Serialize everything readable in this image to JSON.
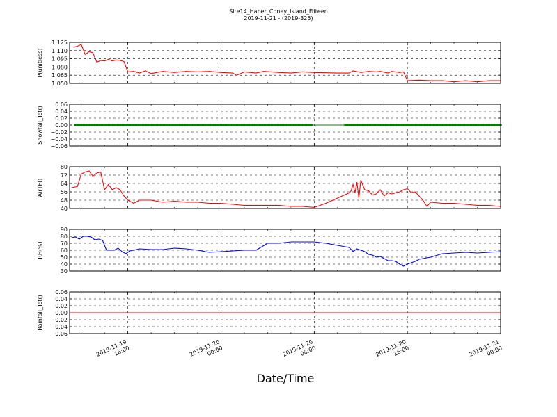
{
  "figure": {
    "title": "Site14_Haber_Coney_Island_Fifteen",
    "subtitle": "2019-11-21 - (2019-325)",
    "xlabel": "Date/Time"
  },
  "chart_data": [
    {
      "type": "line",
      "ylabel": "P(unitless)",
      "ylim": [
        1.05,
        1.125
      ],
      "yticks": [
        "1.050",
        "1.065",
        "1.080",
        "1.095",
        "1.110",
        "1.125"
      ],
      "grid": true,
      "series": [
        {
          "color": "#ff0000",
          "x": [
            "2019-11-19 11:20",
            "2019-11-19 11:40",
            "2019-11-19 12:00",
            "2019-11-19 12:20",
            "2019-11-19 12:40",
            "2019-11-19 13:00",
            "2019-11-19 13:20",
            "2019-11-19 13:40",
            "2019-11-19 14:00",
            "2019-11-19 14:20",
            "2019-11-19 14:40",
            "2019-11-19 15:00",
            "2019-11-19 15:20",
            "2019-11-19 15:40",
            "2019-11-19 16:00",
            "2019-11-19 16:30",
            "2019-11-19 17:00",
            "2019-11-19 17:30",
            "2019-11-19 18:00",
            "2019-11-19 19:00",
            "2019-11-19 20:00",
            "2019-11-19 21:00",
            "2019-11-19 22:00",
            "2019-11-19 23:00",
            "2019-11-20 00:00",
            "2019-11-20 01:00",
            "2019-11-20 01:20",
            "2019-11-20 02:00",
            "2019-11-20 03:00",
            "2019-11-20 03:40",
            "2019-11-20 05:00",
            "2019-11-20 06:00",
            "2019-11-20 07:00",
            "2019-11-20 08:00",
            "2019-11-20 10:00",
            "2019-11-20 11:00",
            "2019-11-20 11:20",
            "2019-11-20 12:00",
            "2019-11-20 12:40",
            "2019-11-20 13:20",
            "2019-11-20 13:40",
            "2019-11-20 14:20",
            "2019-11-20 14:40",
            "2019-11-20 15:20",
            "2019-11-20 15:40",
            "2019-11-20 16:00",
            "2019-11-20 17:00",
            "2019-11-20 18:00",
            "2019-11-20 19:00",
            "2019-11-20 20:00",
            "2019-11-20 21:00",
            "2019-11-20 22:00",
            "2019-11-20 23:00",
            "2019-11-21 00:00"
          ],
          "values": [
            1.116,
            1.118,
            1.121,
            1.103,
            1.108,
            1.106,
            1.089,
            1.092,
            1.091,
            1.094,
            1.091,
            1.093,
            1.092,
            1.09,
            1.071,
            1.072,
            1.069,
            1.073,
            1.068,
            1.072,
            1.07,
            1.072,
            1.071,
            1.072,
            1.07,
            1.069,
            1.065,
            1.071,
            1.069,
            1.072,
            1.07,
            1.069,
            1.071,
            1.07,
            1.069,
            1.069,
            1.073,
            1.07,
            1.072,
            1.071,
            1.072,
            1.069,
            1.072,
            1.07,
            1.071,
            1.055,
            1.056,
            1.055,
            1.055,
            1.053,
            1.055,
            1.053,
            1.055,
            1.055
          ]
        }
      ]
    },
    {
      "type": "scatter",
      "ylabel": "Snowfall_Tot()",
      "ylim": [
        -0.06,
        0.06
      ],
      "yticks": [
        "−0.06",
        "−0.04",
        "−0.02",
        "0.00",
        "0.02",
        "0.04",
        "0.06"
      ],
      "grid": true,
      "series": [
        {
          "color": "#008000",
          "line_value": 0.0,
          "segments": [
            [
              "2019-11-19 11:30",
              "2019-11-20 07:50"
            ],
            [
              "2019-11-20 10:40",
              "2019-11-21 00:00"
            ]
          ],
          "marker_interval_minutes": 8
        }
      ]
    },
    {
      "type": "line",
      "ylabel": "AirTF()",
      "ylim": [
        40,
        80
      ],
      "yticks": [
        "40",
        "48",
        "56",
        "64",
        "72",
        "80"
      ],
      "grid": true,
      "series": [
        {
          "color": "#ff0000",
          "x": [
            "2019-11-19 11:10",
            "2019-11-19 11:40",
            "2019-11-19 12:00",
            "2019-11-19 12:20",
            "2019-11-19 12:40",
            "2019-11-19 13:00",
            "2019-11-19 13:20",
            "2019-11-19 13:40",
            "2019-11-19 14:00",
            "2019-11-19 14:20",
            "2019-11-19 14:40",
            "2019-11-19 15:00",
            "2019-11-19 15:20",
            "2019-11-19 15:40",
            "2019-11-19 16:00",
            "2019-11-19 16:30",
            "2019-11-19 17:00",
            "2019-11-19 18:00",
            "2019-11-19 19:00",
            "2019-11-19 20:00",
            "2019-11-19 21:00",
            "2019-11-19 22:00",
            "2019-11-19 23:00",
            "2019-11-20 00:00",
            "2019-11-20 01:00",
            "2019-11-20 02:00",
            "2019-11-20 03:00",
            "2019-11-20 04:00",
            "2019-11-20 05:00",
            "2019-11-20 06:00",
            "2019-11-20 07:00",
            "2019-11-20 08:00",
            "2019-11-20 09:00",
            "2019-11-20 10:00",
            "2019-11-20 11:00",
            "2019-11-20 11:10",
            "2019-11-20 11:20",
            "2019-11-20 11:30",
            "2019-11-20 11:40",
            "2019-11-20 11:50",
            "2019-11-20 12:00",
            "2019-11-20 12:20",
            "2019-11-20 12:40",
            "2019-11-20 13:00",
            "2019-11-20 13:20",
            "2019-11-20 13:40",
            "2019-11-20 14:00",
            "2019-11-20 14:20",
            "2019-11-20 14:40",
            "2019-11-20 15:00",
            "2019-11-20 15:20",
            "2019-11-20 15:40",
            "2019-11-20 16:00",
            "2019-11-20 16:20",
            "2019-11-20 16:40",
            "2019-11-20 17:00",
            "2019-11-20 17:20",
            "2019-11-20 17:40",
            "2019-11-20 18:00",
            "2019-11-20 19:00",
            "2019-11-20 20:00",
            "2019-11-20 21:00",
            "2019-11-20 22:00",
            "2019-11-20 23:00",
            "2019-11-21 00:00"
          ],
          "values": [
            60,
            61,
            73,
            75,
            76,
            71,
            74,
            75,
            58,
            63,
            58,
            60,
            58,
            52,
            48,
            45,
            48,
            48,
            46,
            47,
            46,
            46,
            45,
            45,
            44,
            43,
            43,
            43,
            43,
            42,
            42,
            41,
            45,
            50,
            55,
            57,
            63,
            55,
            65,
            50,
            67,
            58,
            57,
            53,
            54,
            58,
            52,
            55,
            54,
            55,
            56,
            58,
            59,
            55,
            56,
            52,
            48,
            42,
            46,
            45,
            45,
            44,
            43,
            43,
            42
          ]
        }
      ]
    },
    {
      "type": "line",
      "ylabel": "RH(%)",
      "ylim": [
        30,
        90
      ],
      "yticks": [
        "30",
        "40",
        "50",
        "60",
        "70",
        "80",
        "90"
      ],
      "grid": true,
      "series": [
        {
          "color": "#0000ff",
          "x": [
            "2019-11-19 11:10",
            "2019-11-19 11:30",
            "2019-11-19 11:50",
            "2019-11-19 12:10",
            "2019-11-19 12:30",
            "2019-11-19 12:50",
            "2019-11-19 13:10",
            "2019-11-19 13:30",
            "2019-11-19 13:50",
            "2019-11-19 14:10",
            "2019-11-19 14:30",
            "2019-11-19 14:50",
            "2019-11-19 15:10",
            "2019-11-19 15:30",
            "2019-11-19 15:50",
            "2019-11-19 16:10",
            "2019-11-19 16:30",
            "2019-11-19 17:00",
            "2019-11-19 18:00",
            "2019-11-19 19:00",
            "2019-11-19 20:00",
            "2019-11-19 21:00",
            "2019-11-19 22:00",
            "2019-11-19 23:00",
            "2019-11-20 00:00",
            "2019-11-20 01:00",
            "2019-11-20 02:00",
            "2019-11-20 03:00",
            "2019-11-20 04:00",
            "2019-11-20 05:00",
            "2019-11-20 06:00",
            "2019-11-20 07:00",
            "2019-11-20 08:00",
            "2019-11-20 09:00",
            "2019-11-20 10:00",
            "2019-11-20 11:00",
            "2019-11-20 11:20",
            "2019-11-20 11:40",
            "2019-11-20 12:00",
            "2019-11-20 12:20",
            "2019-11-20 12:40",
            "2019-11-20 13:00",
            "2019-11-20 13:20",
            "2019-11-20 13:40",
            "2019-11-20 14:00",
            "2019-11-20 14:20",
            "2019-11-20 14:40",
            "2019-11-20 15:00",
            "2019-11-20 15:20",
            "2019-11-20 15:40",
            "2019-11-20 16:00",
            "2019-11-20 16:20",
            "2019-11-20 16:40",
            "2019-11-20 17:00",
            "2019-11-20 18:00",
            "2019-11-20 19:00",
            "2019-11-20 20:00",
            "2019-11-20 21:00",
            "2019-11-20 22:00",
            "2019-11-20 23:00",
            "2019-11-21 00:00"
          ],
          "values": [
            78,
            79,
            76,
            80,
            80,
            79,
            75,
            76,
            74,
            60,
            60,
            60,
            63,
            58,
            55,
            59,
            60,
            62,
            61,
            61,
            63,
            62,
            60,
            57,
            58,
            59,
            60,
            60,
            70,
            70,
            72,
            72,
            72,
            70,
            67,
            64,
            58,
            62,
            60,
            58,
            54,
            53,
            50,
            51,
            48,
            45,
            45,
            44,
            40,
            37,
            40,
            42,
            44,
            47,
            50,
            55,
            56,
            57,
            56,
            57,
            58
          ]
        }
      ]
    },
    {
      "type": "line",
      "ylabel": "Rainfall_Tot()",
      "ylim": [
        -0.06,
        0.06
      ],
      "yticks": [
        "−0.06",
        "−0.04",
        "−0.02",
        "0.00",
        "0.02",
        "0.04",
        "0.06"
      ],
      "grid": true,
      "series": [
        {
          "color": "#ff0000",
          "x": [
            "2019-11-19 11:00",
            "2019-11-21 00:00"
          ],
          "values": [
            0.0,
            0.0
          ]
        }
      ]
    }
  ],
  "x_axis": {
    "range": [
      "2019-11-19 11:00",
      "2019-11-21 00:00"
    ],
    "ticks": [
      {
        "at": "2019-11-19 16:00",
        "line1": "2019-11-19",
        "line2": "16:00"
      },
      {
        "at": "2019-11-20 00:00",
        "line1": "2019-11-20",
        "line2": "00:00"
      },
      {
        "at": "2019-11-20 08:00",
        "line1": "2019-11-20",
        "line2": "08:00"
      },
      {
        "at": "2019-11-20 16:00",
        "line1": "2019-11-20",
        "line2": "16:00"
      },
      {
        "at": "2019-11-21 00:00",
        "line1": "2019-11-21",
        "line2": "00:00"
      }
    ],
    "minor_every_hours": 2
  }
}
